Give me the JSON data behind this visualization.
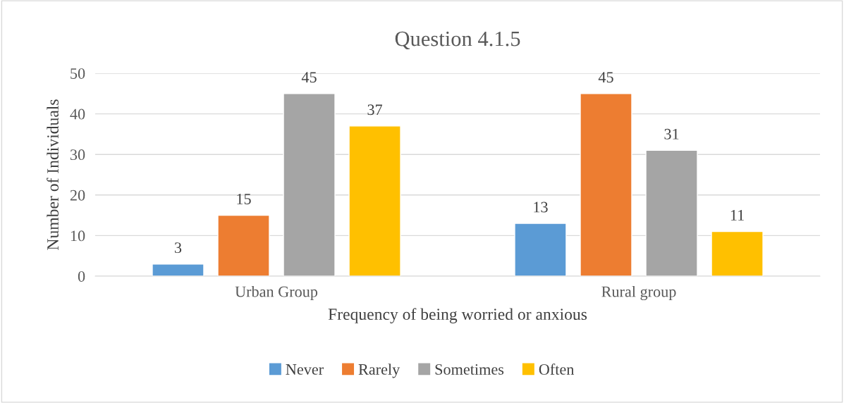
{
  "chart_data": {
    "type": "bar",
    "title": "Question 4.1.5",
    "xlabel": "Frequency of being worried or anxious",
    "ylabel": "Number of Individuals",
    "categories": [
      "Urban Group",
      "Rural group"
    ],
    "series": [
      {
        "name": "Never",
        "color": "#5b9bd5",
        "values": [
          3,
          13
        ]
      },
      {
        "name": "Rarely",
        "color": "#ed7d31",
        "values": [
          15,
          45
        ]
      },
      {
        "name": "Sometimes",
        "color": "#a5a5a5",
        "values": [
          45,
          31
        ]
      },
      {
        "name": "Often",
        "color": "#ffc000",
        "values": [
          37,
          11
        ]
      }
    ],
    "ylim": [
      0,
      50
    ],
    "yticks": [
      0,
      10,
      20,
      30,
      40,
      50
    ],
    "grid": "y",
    "legend": "bottom",
    "data_labels": true
  }
}
